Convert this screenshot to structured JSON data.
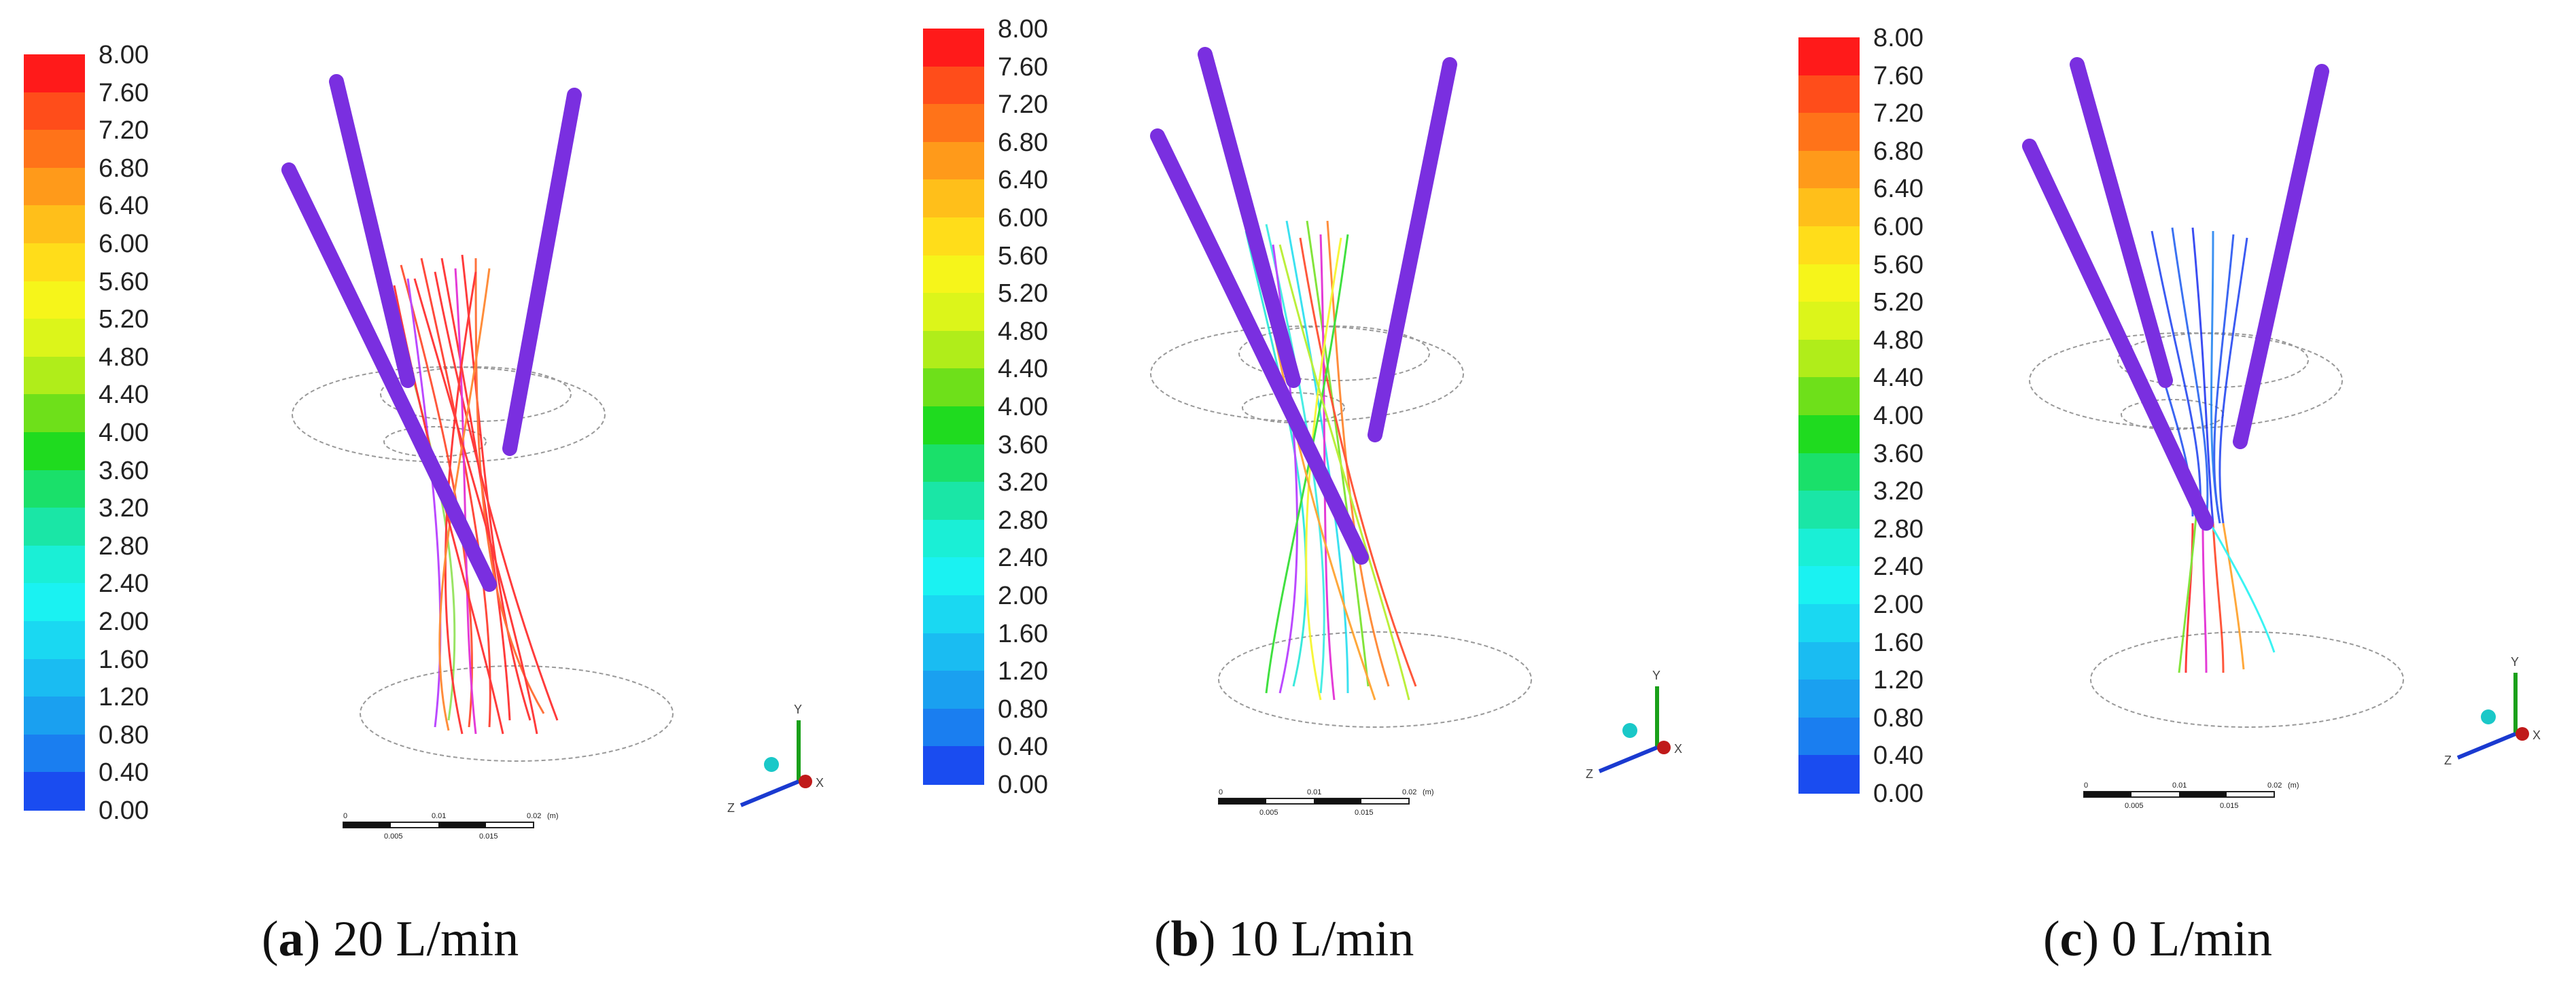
{
  "legend_ticks": [
    "8.00",
    "7.60",
    "7.20",
    "6.80",
    "6.40",
    "6.00",
    "5.60",
    "5.20",
    "4.80",
    "4.40",
    "4.00",
    "3.60",
    "3.20",
    "2.80",
    "2.40",
    "2.00",
    "1.60",
    "1.20",
    "0.80",
    "0.40",
    "0.00"
  ],
  "legend_colors": [
    "#ff1a1a",
    "#ff4d1a",
    "#ff7319",
    "#ff9a1a",
    "#ffbf1a",
    "#ffdd1a",
    "#f6f51a",
    "#dcf51a",
    "#b0ed1a",
    "#6ee01a",
    "#1fdb1f",
    "#1ae06a",
    "#1ae6a6",
    "#1aefd6",
    "#1af2f2",
    "#1ad8f2",
    "#1abcf2",
    "#1aa0f0",
    "#1a7ef0",
    "#1a4cf0",
    "#1a1ef0"
  ],
  "scale_bar": {
    "top_labels": [
      "0",
      "0.01",
      "0.02",
      "(m)"
    ],
    "bottom_labels": [
      "0.005",
      "0.015"
    ]
  },
  "axis_labels": {
    "y": "Y",
    "x": "X",
    "z": "Z"
  },
  "panels": [
    {
      "caption_letter": "a",
      "caption_text": " 20 L/min"
    },
    {
      "caption_letter": "b",
      "caption_text": " 10 L/min"
    },
    {
      "caption_letter": "c",
      "caption_text": " 0 L/min"
    }
  ]
}
